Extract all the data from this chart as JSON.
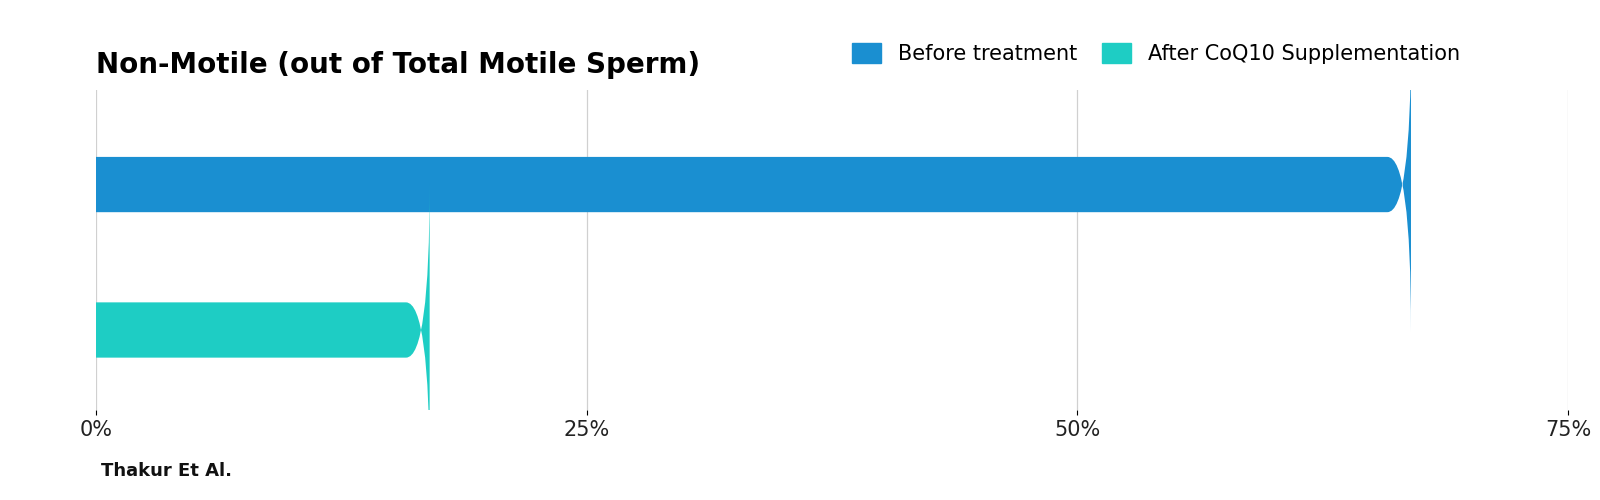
{
  "title": "Non-Motile (out of Total Motile Sperm)",
  "categories": [
    "Before treatment",
    "After CoQ10 Supplementation"
  ],
  "values": [
    67.0,
    17.0
  ],
  "colors": [
    "#1a8fd1",
    "#1ecdc4"
  ],
  "xlim": [
    0,
    75
  ],
  "xticks": [
    0,
    25,
    50,
    75
  ],
  "xticklabels": [
    "0%",
    "25%",
    "50%",
    "75%"
  ],
  "legend_labels": [
    "Before treatment",
    "After CoQ10 Supplementation"
  ],
  "legend_colors": [
    "#1a8fd1",
    "#1ecdc4"
  ],
  "source_text": "Thakur Et Al.",
  "background_color": "#ffffff",
  "bar_height": 0.38,
  "title_fontsize": 20,
  "tick_fontsize": 15,
  "legend_fontsize": 15,
  "source_fontsize": 13,
  "rounding_size": 1.2
}
